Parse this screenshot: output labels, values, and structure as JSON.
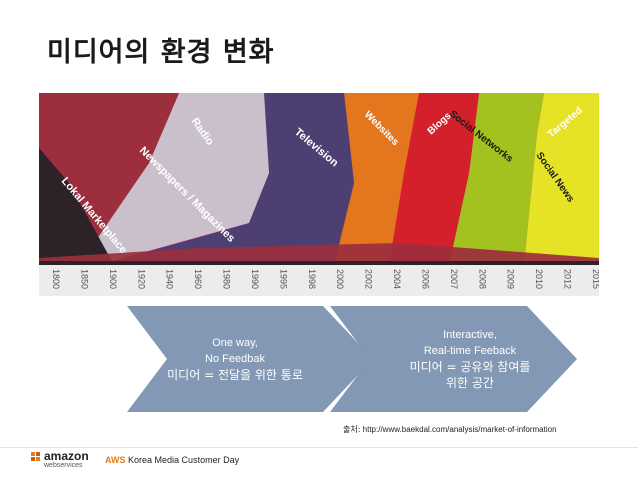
{
  "slide": {
    "title": "미디어의 환경 변화"
  },
  "chart": {
    "layer_labels": [
      {
        "text": "Lokal Marketplace",
        "color": "#ffffff"
      },
      {
        "text": "Newspapers / Magazines",
        "color": "#ffffff"
      },
      {
        "text": "Radio",
        "color": "#ffffff"
      },
      {
        "text": "Television",
        "color": "#ffffff"
      },
      {
        "text": "Websites",
        "color": "#ffffff"
      },
      {
        "text": "Blogs",
        "color": "#ffffff"
      },
      {
        "text": "Social Networks",
        "color": "#1a1a1a"
      },
      {
        "text": "Social News",
        "color": "#1a1a1a"
      },
      {
        "text": "Targeted",
        "color": "#ffffff"
      }
    ],
    "years": [
      "1800",
      "1850",
      "1900",
      "1920",
      "1940",
      "1960",
      "1980",
      "1990",
      "1995",
      "1998",
      "2000",
      "2002",
      "2004",
      "2006",
      "2007",
      "2008",
      "2009",
      "2010",
      "2012",
      "2015"
    ]
  },
  "arrows": {
    "left": {
      "line1": "One way,",
      "line2": "No Feedbak",
      "line3": "미디어 = 전달을 위한 통로"
    },
    "right": {
      "line1": "Interactive,",
      "line2": "Real-time Feeback",
      "line3": "미디어 = 공유와 참여를",
      "line4": "위한 공간"
    }
  },
  "source": {
    "label": "출처:",
    "url": "http://www.baekdal.com/analysis/market-of-information"
  },
  "footer": {
    "logo_main": "amazon",
    "logo_sub": "webservices",
    "event_brand": "AWS",
    "event_rest": "Korea Media Customer Day"
  },
  "colors": {
    "lokal": "#2c2228",
    "newspapers": "#9c2e3d",
    "radio": "#c9c0cc",
    "television": "#4d3f72",
    "websites": "#e4761d",
    "blogs": "#d4202a",
    "social_networks": "#a3c11f",
    "social_news": "#e6e326",
    "targeted": "#d81876",
    "arrow": "#8398b4"
  }
}
